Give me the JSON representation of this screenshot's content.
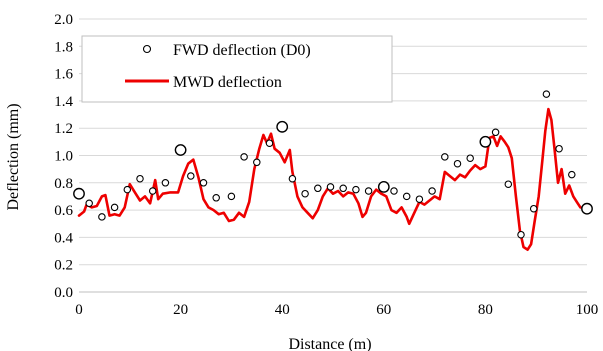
{
  "chart_data": {
    "type": "scatter",
    "title": "",
    "xlabel": "Distance (m)",
    "ylabel": "Deflection (mm)",
    "xlim": [
      0,
      100
    ],
    "ylim": [
      0,
      2.0
    ],
    "x_ticks": [
      "0",
      "20",
      "40",
      "60",
      "80",
      "100"
    ],
    "y_ticks": [
      "0.0",
      "0.2",
      "0.4",
      "0.6",
      "0.8",
      "1.0",
      "1.2",
      "1.4",
      "1.6",
      "1.8",
      "2.0"
    ],
    "x_tick_values": [
      0,
      20,
      40,
      60,
      80,
      100
    ],
    "y_tick_values": [
      0,
      0.2,
      0.4,
      0.6,
      0.8,
      1.0,
      1.2,
      1.4,
      1.6,
      1.8,
      2.0
    ],
    "grid": "horizontal",
    "legend_position": "top-left",
    "series": [
      {
        "name": "FWD deflection (D0)",
        "kind": "markers",
        "color": "#000000",
        "points": [
          {
            "x": 0,
            "y": 0.72,
            "large": true
          },
          {
            "x": 2,
            "y": 0.65
          },
          {
            "x": 4.5,
            "y": 0.55
          },
          {
            "x": 7,
            "y": 0.62
          },
          {
            "x": 9.5,
            "y": 0.75
          },
          {
            "x": 12,
            "y": 0.83
          },
          {
            "x": 14.5,
            "y": 0.74
          },
          {
            "x": 17,
            "y": 0.8
          },
          {
            "x": 20,
            "y": 1.04,
            "large": true
          },
          {
            "x": 22,
            "y": 0.85
          },
          {
            "x": 24.5,
            "y": 0.8
          },
          {
            "x": 27,
            "y": 0.69
          },
          {
            "x": 30,
            "y": 0.7
          },
          {
            "x": 32.5,
            "y": 0.99
          },
          {
            "x": 35,
            "y": 0.95
          },
          {
            "x": 37.5,
            "y": 1.09
          },
          {
            "x": 40,
            "y": 1.21,
            "large": true
          },
          {
            "x": 42,
            "y": 0.83
          },
          {
            "x": 44.5,
            "y": 0.72
          },
          {
            "x": 47,
            "y": 0.76
          },
          {
            "x": 49.5,
            "y": 0.77
          },
          {
            "x": 52,
            "y": 0.76
          },
          {
            "x": 54.5,
            "y": 0.75
          },
          {
            "x": 57,
            "y": 0.74
          },
          {
            "x": 60,
            "y": 0.77,
            "large": true
          },
          {
            "x": 62,
            "y": 0.74
          },
          {
            "x": 64.5,
            "y": 0.7
          },
          {
            "x": 67,
            "y": 0.68
          },
          {
            "x": 69.5,
            "y": 0.74
          },
          {
            "x": 72,
            "y": 0.99
          },
          {
            "x": 74.5,
            "y": 0.94
          },
          {
            "x": 77,
            "y": 0.98
          },
          {
            "x": 80,
            "y": 1.1,
            "large": true
          },
          {
            "x": 82,
            "y": 1.17
          },
          {
            "x": 84.5,
            "y": 0.79
          },
          {
            "x": 87,
            "y": 0.42
          },
          {
            "x": 89.5,
            "y": 0.61
          },
          {
            "x": 92,
            "y": 1.45
          },
          {
            "x": 94.5,
            "y": 1.05
          },
          {
            "x": 97,
            "y": 0.86
          },
          {
            "x": 100,
            "y": 0.61,
            "large": true
          }
        ]
      },
      {
        "name": "MWD deflection",
        "kind": "line",
        "color": "#ee0000",
        "points": [
          {
            "x": 0,
            "y": 0.56
          },
          {
            "x": 1,
            "y": 0.59
          },
          {
            "x": 1.5,
            "y": 0.64
          },
          {
            "x": 2.5,
            "y": 0.62
          },
          {
            "x": 3.5,
            "y": 0.63
          },
          {
            "x": 4.5,
            "y": 0.7
          },
          {
            "x": 5.2,
            "y": 0.71
          },
          {
            "x": 6,
            "y": 0.56
          },
          {
            "x": 7,
            "y": 0.57
          },
          {
            "x": 8,
            "y": 0.56
          },
          {
            "x": 9,
            "y": 0.62
          },
          {
            "x": 10,
            "y": 0.79
          },
          {
            "x": 11,
            "y": 0.73
          },
          {
            "x": 12,
            "y": 0.67
          },
          {
            "x": 13,
            "y": 0.7
          },
          {
            "x": 14,
            "y": 0.65
          },
          {
            "x": 15,
            "y": 0.82
          },
          {
            "x": 15.6,
            "y": 0.68
          },
          {
            "x": 16.5,
            "y": 0.72
          },
          {
            "x": 18,
            "y": 0.73
          },
          {
            "x": 19.5,
            "y": 0.73
          },
          {
            "x": 20.5,
            "y": 0.85
          },
          {
            "x": 21.5,
            "y": 0.94
          },
          {
            "x": 22.5,
            "y": 0.97
          },
          {
            "x": 23.5,
            "y": 0.84
          },
          {
            "x": 24.5,
            "y": 0.68
          },
          {
            "x": 25.5,
            "y": 0.62
          },
          {
            "x": 26.5,
            "y": 0.6
          },
          {
            "x": 27.5,
            "y": 0.57
          },
          {
            "x": 28.5,
            "y": 0.58
          },
          {
            "x": 29.5,
            "y": 0.52
          },
          {
            "x": 30.5,
            "y": 0.53
          },
          {
            "x": 31.5,
            "y": 0.58
          },
          {
            "x": 32.5,
            "y": 0.55
          },
          {
            "x": 33.5,
            "y": 0.66
          },
          {
            "x": 34.5,
            "y": 0.9
          },
          {
            "x": 35.5,
            "y": 1.05
          },
          {
            "x": 36.3,
            "y": 1.15
          },
          {
            "x": 37,
            "y": 1.09
          },
          {
            "x": 37.8,
            "y": 1.16
          },
          {
            "x": 38.5,
            "y": 1.05
          },
          {
            "x": 39.5,
            "y": 1.02
          },
          {
            "x": 40.5,
            "y": 0.95
          },
          {
            "x": 41.5,
            "y": 1.04
          },
          {
            "x": 42,
            "y": 0.88
          },
          {
            "x": 43,
            "y": 0.7
          },
          {
            "x": 44,
            "y": 0.62
          },
          {
            "x": 45,
            "y": 0.58
          },
          {
            "x": 46,
            "y": 0.54
          },
          {
            "x": 47,
            "y": 0.6
          },
          {
            "x": 48,
            "y": 0.7
          },
          {
            "x": 49,
            "y": 0.76
          },
          {
            "x": 50,
            "y": 0.72
          },
          {
            "x": 51,
            "y": 0.74
          },
          {
            "x": 52,
            "y": 0.7
          },
          {
            "x": 53,
            "y": 0.73
          },
          {
            "x": 54,
            "y": 0.72
          },
          {
            "x": 55,
            "y": 0.65
          },
          {
            "x": 55.8,
            "y": 0.55
          },
          {
            "x": 56.5,
            "y": 0.58
          },
          {
            "x": 57.5,
            "y": 0.7
          },
          {
            "x": 58.5,
            "y": 0.75
          },
          {
            "x": 59.5,
            "y": 0.72
          },
          {
            "x": 60.5,
            "y": 0.7
          },
          {
            "x": 61.5,
            "y": 0.6
          },
          {
            "x": 62.5,
            "y": 0.58
          },
          {
            "x": 63.5,
            "y": 0.62
          },
          {
            "x": 64.5,
            "y": 0.55
          },
          {
            "x": 65,
            "y": 0.5
          },
          {
            "x": 66,
            "y": 0.58
          },
          {
            "x": 67,
            "y": 0.66
          },
          {
            "x": 68,
            "y": 0.64
          },
          {
            "x": 69,
            "y": 0.67
          },
          {
            "x": 70,
            "y": 0.7
          },
          {
            "x": 71,
            "y": 0.68
          },
          {
            "x": 72,
            "y": 0.88
          },
          {
            "x": 73,
            "y": 0.85
          },
          {
            "x": 74,
            "y": 0.82
          },
          {
            "x": 75,
            "y": 0.86
          },
          {
            "x": 76,
            "y": 0.84
          },
          {
            "x": 77,
            "y": 0.89
          },
          {
            "x": 78,
            "y": 0.93
          },
          {
            "x": 79,
            "y": 0.9
          },
          {
            "x": 80,
            "y": 0.92
          },
          {
            "x": 80.8,
            "y": 1.13
          },
          {
            "x": 81.6,
            "y": 1.14
          },
          {
            "x": 82.3,
            "y": 1.07
          },
          {
            "x": 83,
            "y": 1.14
          },
          {
            "x": 83.8,
            "y": 1.1
          },
          {
            "x": 84.5,
            "y": 1.06
          },
          {
            "x": 85.2,
            "y": 0.98
          },
          {
            "x": 86,
            "y": 0.7
          },
          {
            "x": 86.8,
            "y": 0.45
          },
          {
            "x": 87.5,
            "y": 0.33
          },
          {
            "x": 88.3,
            "y": 0.31
          },
          {
            "x": 89,
            "y": 0.35
          },
          {
            "x": 89.7,
            "y": 0.52
          },
          {
            "x": 90.5,
            "y": 0.7
          },
          {
            "x": 91.2,
            "y": 0.96
          },
          {
            "x": 91.8,
            "y": 1.18
          },
          {
            "x": 92.4,
            "y": 1.34
          },
          {
            "x": 93,
            "y": 1.26
          },
          {
            "x": 93.6,
            "y": 1.05
          },
          {
            "x": 94.3,
            "y": 0.8
          },
          {
            "x": 95,
            "y": 0.9
          },
          {
            "x": 95.7,
            "y": 0.72
          },
          {
            "x": 96.5,
            "y": 0.78
          },
          {
            "x": 97.3,
            "y": 0.7
          },
          {
            "x": 98,
            "y": 0.66
          },
          {
            "x": 98.7,
            "y": 0.62
          }
        ]
      }
    ]
  }
}
